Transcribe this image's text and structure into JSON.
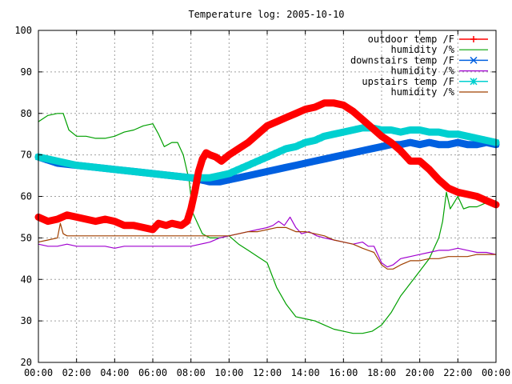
{
  "chart_data": {
    "type": "line",
    "title": "Temperature log: 2005-10-10",
    "xlabel": "",
    "ylabel": "",
    "xlim": [
      0,
      24
    ],
    "ylim": [
      20,
      100
    ],
    "grid": true,
    "legend_position": "top-right",
    "x_tick_labels": [
      "00:00",
      "02:00",
      "04:00",
      "06:00",
      "08:00",
      "10:00",
      "12:00",
      "14:00",
      "16:00",
      "18:00",
      "20:00",
      "22:00",
      "00:00"
    ],
    "x_ticks": [
      0,
      2,
      4,
      6,
      8,
      10,
      12,
      14,
      16,
      18,
      20,
      22,
      24
    ],
    "y_ticks": [
      20,
      30,
      40,
      50,
      60,
      70,
      80,
      90,
      100
    ],
    "series": [
      {
        "name": "outdoor temp /F",
        "color": "#ff0000",
        "marker": "plus",
        "thick": true,
        "x": [
          0,
          0.5,
          1,
          1.5,
          2,
          2.5,
          3,
          3.5,
          4,
          4.5,
          5,
          5.5,
          6,
          6.3,
          6.7,
          7,
          7.5,
          7.8,
          8,
          8.2,
          8.4,
          8.6,
          8.8,
          9,
          9.3,
          9.6,
          10,
          10.5,
          11,
          11.5,
          12,
          12.5,
          13,
          13.5,
          14,
          14.5,
          15,
          15.5,
          16,
          16.5,
          17,
          17.5,
          18,
          18.5,
          19,
          19.5,
          20,
          20.5,
          21,
          21.5,
          22,
          22.5,
          23,
          23.5,
          24
        ],
        "y": [
          55,
          54,
          54.5,
          55.5,
          55,
          54.5,
          54,
          54.5,
          54,
          53,
          53,
          52.5,
          52,
          53.5,
          53,
          53.5,
          53,
          54,
          57,
          61,
          66,
          69,
          70.5,
          70,
          69.5,
          68.5,
          70,
          71.5,
          73,
          75,
          77,
          78,
          79,
          80,
          81,
          81.5,
          82.5,
          82.5,
          82,
          80.5,
          78.5,
          76.5,
          74.5,
          73,
          71,
          68.5,
          68.5,
          66.5,
          64,
          62,
          61,
          60.5,
          60,
          59,
          58
        ]
      },
      {
        "name": "humidity /%",
        "color": "#00a000",
        "marker": "none",
        "thick": false,
        "x": [
          0,
          0.5,
          1,
          1.3,
          1.6,
          2,
          2.5,
          3,
          3.5,
          4,
          4.5,
          5,
          5.5,
          6,
          6.3,
          6.6,
          7,
          7.3,
          7.6,
          7.9,
          8.1,
          8.3,
          8.6,
          9,
          9.5,
          10,
          10.5,
          11,
          11.5,
          12,
          12.5,
          13,
          13.5,
          14,
          14.5,
          15,
          15.5,
          16,
          16.5,
          17,
          17.5,
          18,
          18.5,
          19,
          19.5,
          20,
          20.5,
          21,
          21.2,
          21.4,
          21.6,
          21.8,
          22,
          22.3,
          22.6,
          23,
          23.5,
          24
        ],
        "y": [
          78,
          79.5,
          80,
          80,
          76,
          74.5,
          74.5,
          74,
          74,
          74.5,
          75.5,
          76,
          77,
          77.5,
          75,
          72,
          73,
          73,
          70,
          64,
          56,
          54,
          51,
          50,
          50,
          50.5,
          48.5,
          47,
          45.5,
          44,
          38,
          34,
          31,
          30.5,
          30,
          29,
          28,
          27.5,
          27,
          27,
          27.5,
          29,
          32,
          36,
          39,
          42,
          45,
          50,
          54,
          61,
          57,
          58.5,
          60,
          57,
          57.5,
          57.5,
          58.5,
          59
        ]
      },
      {
        "name": "downstairs temp /F",
        "color": "#0060e0",
        "marker": "x",
        "thick": true,
        "x": [
          0,
          1,
          2,
          3,
          4,
          5,
          6,
          7,
          8,
          8.5,
          9,
          9.5,
          10,
          10.5,
          11,
          11.5,
          12,
          12.5,
          13,
          13.5,
          14,
          14.5,
          15,
          15.5,
          16,
          16.5,
          17,
          17.5,
          18,
          18.5,
          19,
          19.5,
          20,
          20.5,
          21,
          21.5,
          22,
          22.5,
          23,
          23.5,
          24
        ],
        "y": [
          69.5,
          68,
          67.5,
          67,
          66.5,
          66,
          65.5,
          65,
          64.5,
          64,
          63.5,
          63.5,
          64,
          64.5,
          65,
          65.5,
          66,
          66.5,
          67,
          67.5,
          68,
          68.5,
          69,
          69.5,
          70,
          70.5,
          71,
          71.5,
          72,
          72.5,
          72.5,
          73,
          72.5,
          73,
          72.5,
          72.5,
          73,
          72.5,
          72.5,
          73,
          72.5
        ]
      },
      {
        "name": "humidity /%",
        "color": "#a000d0",
        "marker": "none",
        "thick": false,
        "x": [
          0,
          0.5,
          1,
          1.5,
          2,
          2.5,
          3,
          3.5,
          4,
          4.5,
          5,
          5.5,
          6,
          6.5,
          7,
          7.5,
          8,
          8.5,
          9,
          9.5,
          10,
          10.5,
          11,
          11.5,
          12,
          12.3,
          12.6,
          12.9,
          13.2,
          13.5,
          13.8,
          14.2,
          14.6,
          15,
          15.5,
          16,
          16.5,
          17,
          17.3,
          17.6,
          18,
          18.3,
          18.6,
          19,
          19.5,
          20,
          20.5,
          21,
          21.5,
          22,
          22.5,
          23,
          23.5,
          24
        ],
        "y": [
          48.5,
          48,
          48,
          48.5,
          48,
          48,
          48,
          48,
          47.5,
          48,
          48,
          48,
          48,
          48,
          48,
          48,
          48,
          48.5,
          49,
          50,
          50.5,
          51,
          51.5,
          52,
          52.5,
          53,
          54,
          53,
          55,
          52.5,
          51,
          51.5,
          50.5,
          50,
          49.5,
          49,
          48.5,
          49,
          48,
          48,
          44,
          43,
          43.5,
          45,
          45.5,
          46,
          46.5,
          47,
          47,
          47.5,
          47,
          46.5,
          46.5,
          46
        ]
      },
      {
        "name": "upstairs temp /F",
        "color": "#00d0d0",
        "marker": "star",
        "thick": true,
        "x": [
          0,
          1,
          2,
          3,
          4,
          5,
          6,
          7,
          8,
          8.5,
          9,
          9.5,
          10,
          10.5,
          11,
          11.5,
          12,
          12.5,
          13,
          13.5,
          14,
          14.5,
          15,
          15.5,
          16,
          16.5,
          17,
          17.5,
          18,
          18.5,
          19,
          19.5,
          20,
          20.5,
          21,
          21.5,
          22,
          22.5,
          23,
          23.5,
          24
        ],
        "y": [
          69.5,
          68.5,
          67.5,
          67,
          66.5,
          66,
          65.5,
          65,
          64.5,
          64.5,
          64.5,
          65,
          65.5,
          66.5,
          67.5,
          68.5,
          69.5,
          70.5,
          71.5,
          72,
          73,
          73.5,
          74.5,
          75,
          75.5,
          76,
          76.5,
          76.5,
          76,
          76,
          75.5,
          76,
          76,
          75.5,
          75.5,
          75,
          75,
          74.5,
          74,
          73.5,
          73
        ]
      },
      {
        "name": "humidity /%",
        "color": "#a04000",
        "marker": "none",
        "thick": false,
        "x": [
          0,
          0.5,
          1,
          1.15,
          1.3,
          1.5,
          2,
          3,
          4,
          5,
          6,
          7,
          8,
          9,
          9.5,
          10,
          10.5,
          11,
          11.5,
          12,
          12.5,
          13,
          13.5,
          14,
          14.5,
          15,
          15.5,
          16,
          16.5,
          17,
          17.3,
          17.6,
          18,
          18.3,
          18.6,
          19,
          19.5,
          20,
          20.5,
          21,
          21.5,
          22,
          22.5,
          23,
          23.5,
          24
        ],
        "y": [
          49,
          49.5,
          50,
          53.5,
          51,
          50.5,
          50.5,
          50.5,
          50.5,
          50.5,
          50.5,
          50.5,
          50.5,
          50.5,
          50.5,
          50.5,
          51,
          51.5,
          51.5,
          52,
          52.5,
          52.5,
          51.5,
          51.5,
          51,
          50.5,
          49.5,
          49,
          48.5,
          47.5,
          47,
          46.5,
          43.5,
          42.5,
          42.5,
          43.5,
          44.5,
          44.5,
          45,
          45,
          45.5,
          45.5,
          45.5,
          46,
          46,
          46
        ]
      }
    ]
  }
}
